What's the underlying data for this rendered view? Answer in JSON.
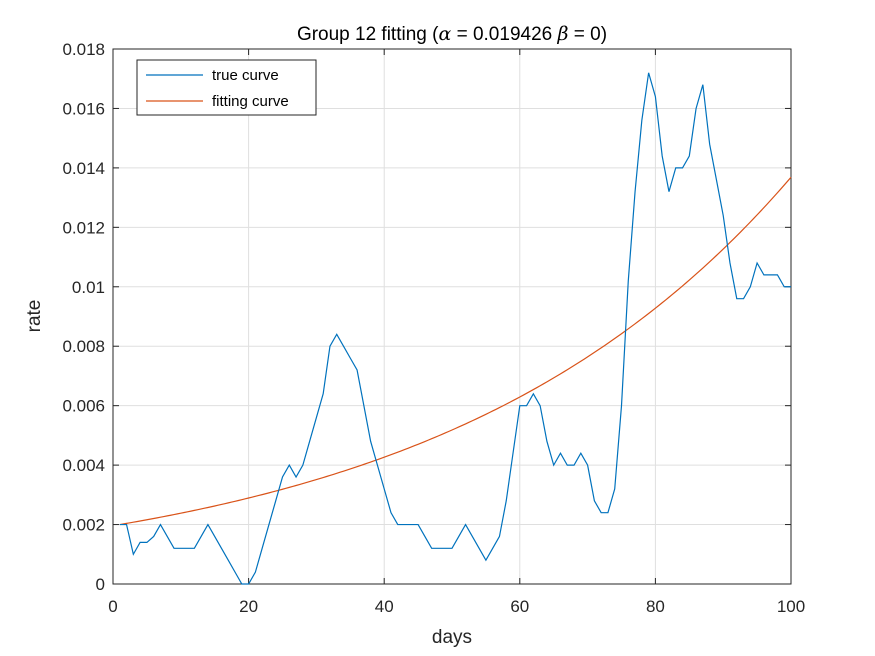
{
  "chart_data": {
    "type": "line",
    "title": "Group 12 fitting (α = 0.019426 β = 0)",
    "title_parts": {
      "prefix": "Group 12 fitting (",
      "alpha_symbol": "α",
      "alpha_text": " = 0.019426 ",
      "beta_symbol": "β",
      "beta_text": " = 0)"
    },
    "xlabel": "days",
    "ylabel": "rate",
    "xlim": [
      0,
      100
    ],
    "ylim": [
      0,
      0.018
    ],
    "xticks": [
      0,
      20,
      40,
      60,
      80,
      100
    ],
    "xtick_labels": [
      "0",
      "20",
      "40",
      "60",
      "80",
      "100"
    ],
    "yticks": [
      0,
      0.002,
      0.004,
      0.006,
      0.008,
      0.01,
      0.012,
      0.014,
      0.016,
      0.018
    ],
    "ytick_labels": [
      "0",
      "0.002",
      "0.004",
      "0.006",
      "0.008",
      "0.01",
      "0.012",
      "0.014",
      "0.016",
      "0.018"
    ],
    "grid": true,
    "legend_position": "top-left",
    "series": [
      {
        "name": "true curve",
        "color": "#0072BD",
        "x": [
          1,
          2,
          3,
          4,
          5,
          6,
          7,
          8,
          9,
          10,
          11,
          12,
          13,
          14,
          15,
          16,
          17,
          18,
          19,
          20,
          21,
          22,
          23,
          24,
          25,
          26,
          27,
          28,
          29,
          30,
          31,
          32,
          33,
          34,
          35,
          36,
          37,
          38,
          39,
          40,
          41,
          42,
          43,
          44,
          45,
          46,
          47,
          48,
          49,
          50,
          51,
          52,
          53,
          54,
          55,
          56,
          57,
          58,
          59,
          60,
          61,
          62,
          63,
          64,
          65,
          66,
          67,
          68,
          69,
          70,
          71,
          72,
          73,
          74,
          75,
          76,
          77,
          78,
          79,
          80,
          81,
          82,
          83,
          84,
          85,
          86,
          87,
          88,
          89,
          90,
          91,
          92,
          93,
          94,
          95,
          96,
          97,
          98,
          99,
          100
        ],
        "y": [
          0.002,
          0.002,
          0.001,
          0.0014,
          0.0014,
          0.0016,
          0.002,
          0.0016,
          0.0012,
          0.0012,
          0.0012,
          0.0012,
          0.0016,
          0.002,
          0.0016,
          0.0012,
          0.0008,
          0.0004,
          0,
          0,
          0.0004,
          0.0012,
          0.002,
          0.0028,
          0.0036,
          0.004,
          0.0036,
          0.004,
          0.0048,
          0.0056,
          0.0064,
          0.008,
          0.0084,
          0.008,
          0.0076,
          0.0072,
          0.006,
          0.0048,
          0.004,
          0.0032,
          0.0024,
          0.002,
          0.002,
          0.002,
          0.002,
          0.0016,
          0.0012,
          0.0012,
          0.0012,
          0.0012,
          0.0016,
          0.002,
          0.0016,
          0.0012,
          0.0008,
          0.0012,
          0.0016,
          0.0028,
          0.0044,
          0.006,
          0.006,
          0.0064,
          0.006,
          0.0048,
          0.004,
          0.0044,
          0.004,
          0.004,
          0.0044,
          0.004,
          0.0028,
          0.0024,
          0.0024,
          0.0032,
          0.006,
          0.0102,
          0.0132,
          0.0156,
          0.0172,
          0.0164,
          0.0144,
          0.0132,
          0.014,
          0.014,
          0.0144,
          0.016,
          0.0168,
          0.0148,
          0.0136,
          0.0124,
          0.0108,
          0.0096,
          0.0096,
          0.01,
          0.0108,
          0.0104,
          0.0104,
          0.0104,
          0.01,
          0.01
        ]
      },
      {
        "name": "fitting curve",
        "color": "#D95319",
        "formula_a": 0.002,
        "formula_rate": 0.019426,
        "x_start": 1,
        "x_end": 100
      }
    ]
  }
}
